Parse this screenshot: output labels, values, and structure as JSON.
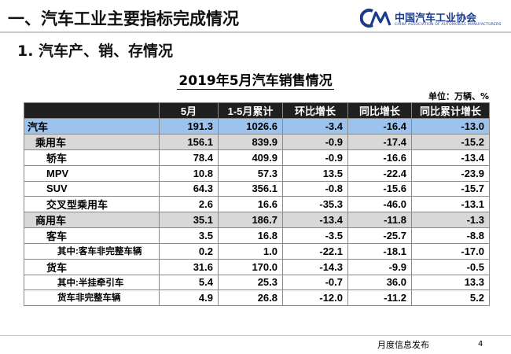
{
  "header": {
    "title": "一、汽车工业主要指标完成情况",
    "logo_cn": "中国汽车工业协会",
    "logo_en": "CHINA ASSOCIATION OF AUTOMOBILE MANUFACTURERS"
  },
  "section_title": "1. 汽车产、销、存情况",
  "table": {
    "title": "2019年5月汽车销售情况",
    "unit": "单位：万辆、%",
    "columns": [
      "",
      "5月",
      "1-5月累计",
      "环比增长",
      "同比增长",
      "同比累计增长"
    ],
    "rows": [
      {
        "cells": [
          "汽车",
          "191.3",
          "1026.6",
          "-3.4",
          "-16.4",
          "-13.0"
        ]
      },
      {
        "cells": [
          "乘用车",
          "156.1",
          "839.9",
          "-0.9",
          "-17.4",
          "-15.2"
        ]
      },
      {
        "cells": [
          "轿车",
          "78.4",
          "409.9",
          "-0.9",
          "-16.6",
          "-13.4"
        ]
      },
      {
        "cells": [
          "MPV",
          "10.8",
          "57.3",
          "13.5",
          "-22.4",
          "-23.9"
        ]
      },
      {
        "cells": [
          "SUV",
          "64.3",
          "356.1",
          "-0.8",
          "-15.6",
          "-15.7"
        ]
      },
      {
        "cells": [
          "交叉型乘用车",
          "2.6",
          "16.6",
          "-35.3",
          "-46.0",
          "-13.1"
        ]
      },
      {
        "cells": [
          "商用车",
          "35.1",
          "186.7",
          "-13.4",
          "-11.8",
          "-1.3"
        ]
      },
      {
        "cells": [
          "客车",
          "3.5",
          "16.8",
          "-3.5",
          "-25.7",
          "-8.8"
        ]
      },
      {
        "cells": [
          "其中:客车非完整车辆",
          "0.2",
          "1.0",
          "-22.1",
          "-18.1",
          "-17.0"
        ]
      },
      {
        "cells": [
          "货车",
          "31.6",
          "170.0",
          "-14.3",
          "-9.9",
          "-0.5"
        ]
      },
      {
        "cells": [
          "其中:半挂牵引车",
          "5.4",
          "25.3",
          "-0.7",
          "36.0",
          "13.3"
        ]
      },
      {
        "cells": [
          "货车非完整车辆",
          "4.9",
          "26.8",
          "-12.0",
          "-11.2",
          "5.2"
        ]
      }
    ]
  },
  "footer": {
    "text": "月度信息发布",
    "page": "4"
  },
  "colors": {
    "header_bg": "#1f1f1f",
    "total_row": "#9cc3ee",
    "category_row": "#d8d8d8",
    "brand": "#1b3a8a"
  }
}
